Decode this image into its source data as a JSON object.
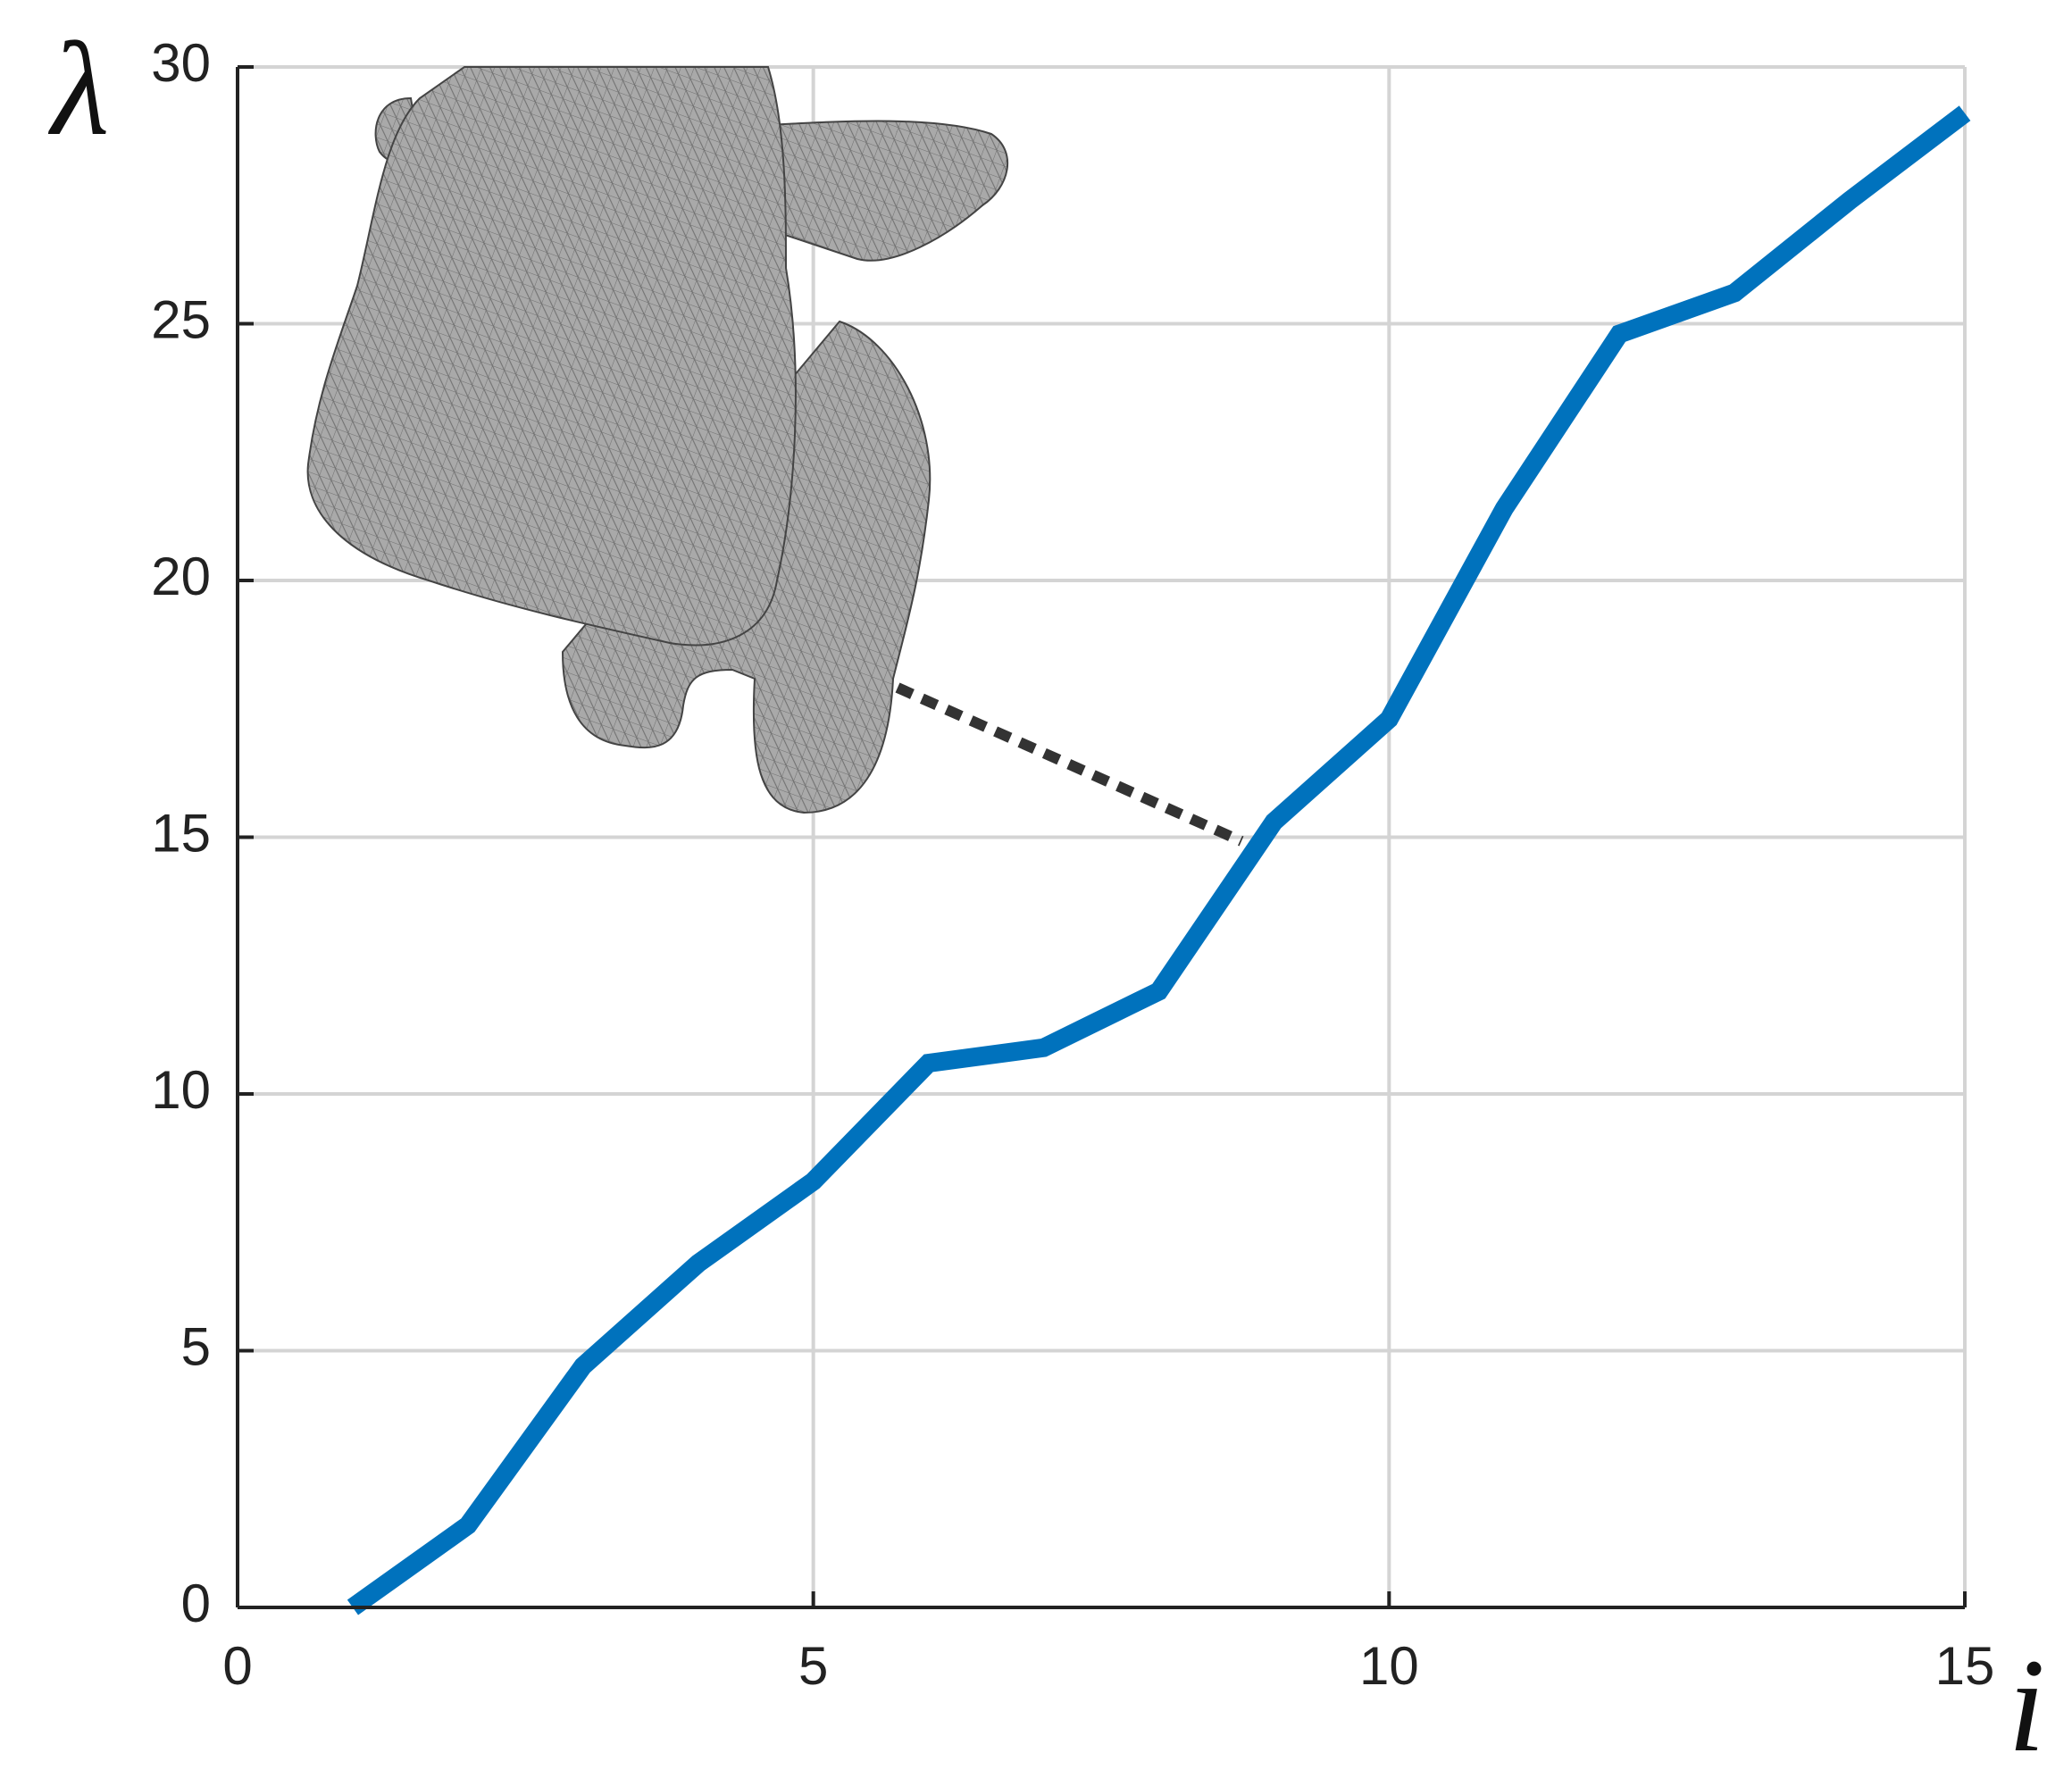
{
  "chart_data": {
    "type": "line",
    "x_label": "i",
    "y_label": "λ",
    "x": [
      1,
      2,
      3,
      4,
      5,
      6,
      7,
      8,
      9,
      10,
      11,
      12,
      13,
      14,
      15
    ],
    "series": [
      {
        "color": "#0072bd",
        "values": [
          0,
          1.6,
          4.7,
          6.7,
          8.3,
          10.6,
          10.9,
          12.0,
          15.3,
          17.3,
          21.4,
          24.8,
          25.6,
          27.4,
          29.1
        ]
      }
    ],
    "xlim": [
      0,
      15
    ],
    "ylim": [
      0,
      30
    ],
    "xticks": [
      0,
      5,
      10,
      15
    ],
    "yticks": [
      0,
      5,
      10,
      15,
      20,
      25,
      30
    ],
    "grid": true
  }
}
